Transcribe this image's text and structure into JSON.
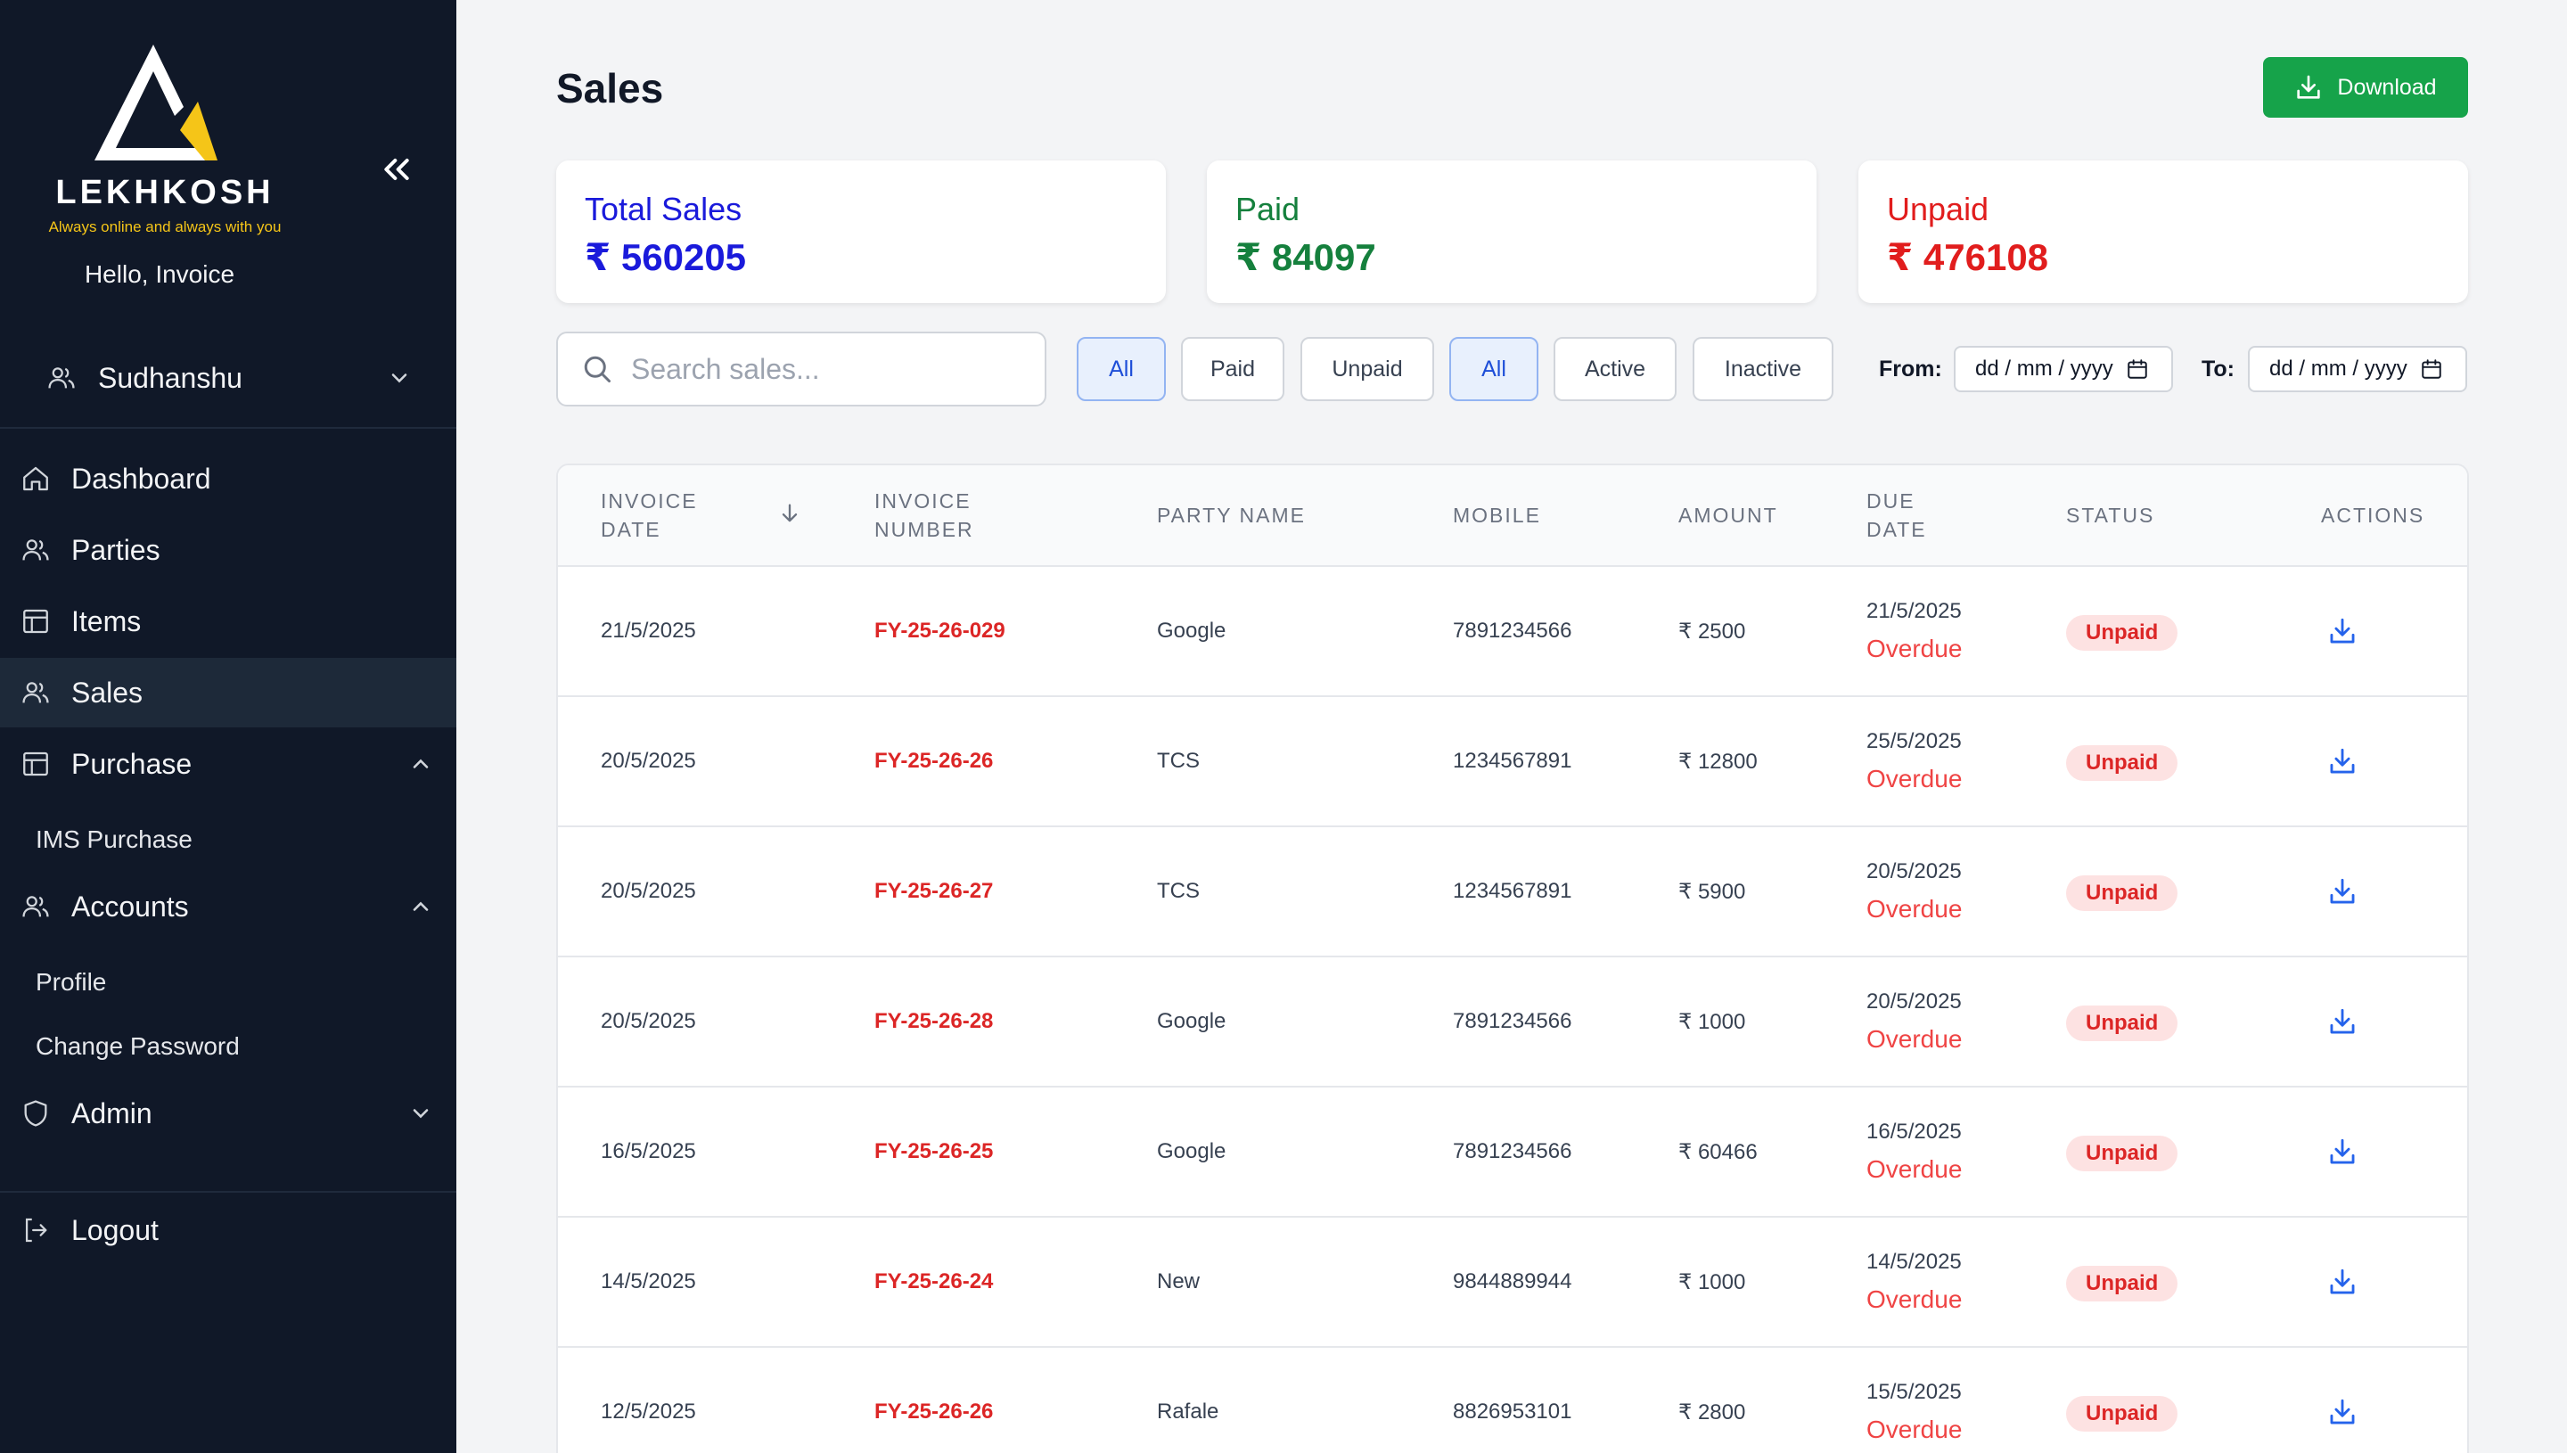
{
  "brand": {
    "name": "LEKHKOSH",
    "tagline": "Always online and always with you",
    "colors": {
      "sidebar": "#101828",
      "accent_yellow": "#f5c518"
    }
  },
  "sidebar": {
    "greeting": "Hello, Invoice",
    "user": "Sudhanshu",
    "items": [
      {
        "label": "Dashboard",
        "icon": "home-icon"
      },
      {
        "label": "Parties",
        "icon": "users-icon"
      },
      {
        "label": "Items",
        "icon": "table-icon"
      },
      {
        "label": "Sales",
        "icon": "users-icon",
        "active": true
      },
      {
        "label": "Purchase",
        "icon": "table-icon",
        "expanded": true
      },
      {
        "label": "Accounts",
        "icon": "users-icon",
        "expanded": true
      },
      {
        "label": "Admin",
        "icon": "shield-icon"
      }
    ],
    "purchase_sub": [
      "IMS Purchase"
    ],
    "accounts_sub": [
      "Profile",
      "Change Password"
    ],
    "logout": "Logout"
  },
  "header": {
    "title": "Sales",
    "download_label": "Download"
  },
  "summary": {
    "total": {
      "label": "Total Sales",
      "value": "₹ 560205",
      "color": "#1a1adb"
    },
    "paid": {
      "label": "Paid",
      "value": "₹ 84097",
      "color": "#15803d"
    },
    "unpaid": {
      "label": "Unpaid",
      "value": "₹ 476108",
      "color": "#e11d1d"
    }
  },
  "filters": {
    "search_placeholder": "Search sales...",
    "payment": [
      "All",
      "Paid",
      "Unpaid"
    ],
    "state": [
      "All",
      "Active",
      "Inactive"
    ],
    "from_label": "From:",
    "to_label": "To:",
    "date_placeholder": "dd / mm / yyyy"
  },
  "table": {
    "columns": [
      "Invoice Date",
      "Invoice Number",
      "Party Name",
      "Mobile",
      "Amount",
      "Due Date",
      "Status",
      "Actions"
    ],
    "rows": [
      {
        "date": "21/5/2025",
        "invoice": "FY-25-26-029",
        "party": "Google",
        "mobile": "7891234566",
        "amount": "₹ 2500",
        "due": "21/5/2025",
        "due_note": "Overdue",
        "status": "Unpaid"
      },
      {
        "date": "20/5/2025",
        "invoice": "FY-25-26-26",
        "party": "TCS",
        "mobile": "1234567891",
        "amount": "₹ 12800",
        "due": "25/5/2025",
        "due_note": "Overdue",
        "status": "Unpaid"
      },
      {
        "date": "20/5/2025",
        "invoice": "FY-25-26-27",
        "party": "TCS",
        "mobile": "1234567891",
        "amount": "₹ 5900",
        "due": "20/5/2025",
        "due_note": "Overdue",
        "status": "Unpaid"
      },
      {
        "date": "20/5/2025",
        "invoice": "FY-25-26-28",
        "party": "Google",
        "mobile": "7891234566",
        "amount": "₹ 1000",
        "due": "20/5/2025",
        "due_note": "Overdue",
        "status": "Unpaid"
      },
      {
        "date": "16/5/2025",
        "invoice": "FY-25-26-25",
        "party": "Google",
        "mobile": "7891234566",
        "amount": "₹ 60466",
        "due": "16/5/2025",
        "due_note": "Overdue",
        "status": "Unpaid"
      },
      {
        "date": "14/5/2025",
        "invoice": "FY-25-26-24",
        "party": "New",
        "mobile": "9844889944",
        "amount": "₹ 1000",
        "due": "14/5/2025",
        "due_note": "Overdue",
        "status": "Unpaid"
      },
      {
        "date": "12/5/2025",
        "invoice": "FY-25-26-26",
        "party": "Rafale",
        "mobile": "8826953101",
        "amount": "₹ 2800",
        "due": "15/5/2025",
        "due_note": "Overdue",
        "status": "Unpaid"
      }
    ]
  }
}
